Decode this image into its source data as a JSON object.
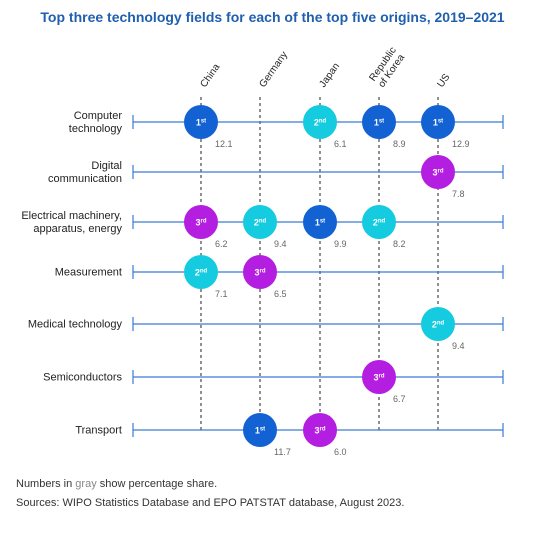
{
  "title": "Top three technology fields for each of the top five origins, 2019–2021",
  "colors": {
    "1st": "#1262d4",
    "2nd": "#14cbe0",
    "3rd": "#b41ee0",
    "line": "#3a7bd5"
  },
  "footnote": {
    "pre": "Numbers in ",
    "gray": "gray",
    "post": " show percentage share."
  },
  "sources": "Sources: WIPO Statistics Database and EPO PATSTAT database, August 2023.",
  "chart_data": {
    "type": "table",
    "title": "Top three technology fields for each of the top five origins, 2019–2021",
    "origins": [
      {
        "lines": [
          "China"
        ]
      },
      {
        "lines": [
          "Germany"
        ]
      },
      {
        "lines": [
          "Japan"
        ]
      },
      {
        "lines": [
          "Republic",
          "of Korea"
        ]
      },
      {
        "lines": [
          "US"
        ]
      }
    ],
    "fields": [
      {
        "lines": [
          "Computer",
          "technology"
        ]
      },
      {
        "lines": [
          "Digital",
          "communication"
        ]
      },
      {
        "lines": [
          "Electrical machinery,",
          "apparatus, energy"
        ]
      },
      {
        "lines": [
          "Measurement"
        ]
      },
      {
        "lines": [
          "Medical technology"
        ]
      },
      {
        "lines": [
          "Semiconductors"
        ]
      },
      {
        "lines": [
          "Transport"
        ]
      }
    ],
    "entries": [
      {
        "field": 0,
        "origin": 0,
        "rank": "1st",
        "num": "1",
        "sup": "st",
        "share": "12.1"
      },
      {
        "field": 0,
        "origin": 2,
        "rank": "2nd",
        "num": "2",
        "sup": "nd",
        "share": "6.1"
      },
      {
        "field": 0,
        "origin": 3,
        "rank": "1st",
        "num": "1",
        "sup": "st",
        "share": "8.9"
      },
      {
        "field": 0,
        "origin": 4,
        "rank": "1st",
        "num": "1",
        "sup": "st",
        "share": "12.9"
      },
      {
        "field": 1,
        "origin": 4,
        "rank": "3rd",
        "num": "3",
        "sup": "rd",
        "share": "7.8"
      },
      {
        "field": 2,
        "origin": 0,
        "rank": "3rd",
        "num": "3",
        "sup": "rd",
        "share": "6.2"
      },
      {
        "field": 2,
        "origin": 1,
        "rank": "2nd",
        "num": "2",
        "sup": "nd",
        "share": "9.4"
      },
      {
        "field": 2,
        "origin": 2,
        "rank": "1st",
        "num": "1",
        "sup": "st",
        "share": "9.9"
      },
      {
        "field": 2,
        "origin": 3,
        "rank": "2nd",
        "num": "2",
        "sup": "nd",
        "share": "8.2"
      },
      {
        "field": 3,
        "origin": 0,
        "rank": "2nd",
        "num": "2",
        "sup": "nd",
        "share": "7.1"
      },
      {
        "field": 3,
        "origin": 1,
        "rank": "3rd",
        "num": "3",
        "sup": "rd",
        "share": "6.5"
      },
      {
        "field": 4,
        "origin": 4,
        "rank": "2nd",
        "num": "2",
        "sup": "nd",
        "share": "9.4"
      },
      {
        "field": 5,
        "origin": 3,
        "rank": "3rd",
        "num": "3",
        "sup": "rd",
        "share": "6.7"
      },
      {
        "field": 6,
        "origin": 1,
        "rank": "1st",
        "num": "1",
        "sup": "st",
        "share": "11.7"
      },
      {
        "field": 6,
        "origin": 2,
        "rank": "3rd",
        "num": "3",
        "sup": "rd",
        "share": "6.0"
      }
    ]
  }
}
